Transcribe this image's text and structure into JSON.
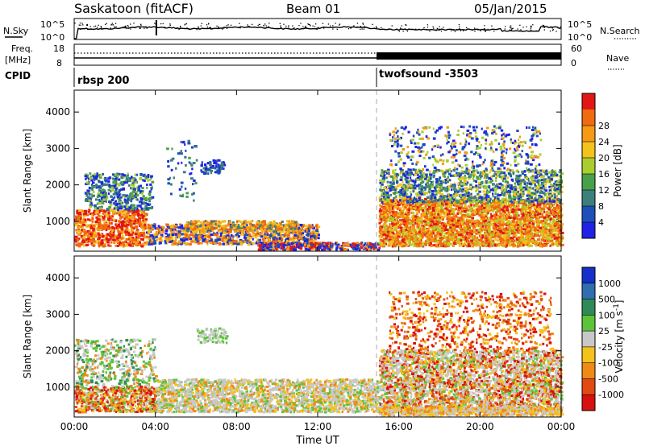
{
  "header": {
    "title": "Saskatoon (fitACF)",
    "beam": "Beam 01",
    "date": "05/Jan/2015"
  },
  "panel_labels": {
    "nsky": "N.Sky",
    "nsky_hi": "10^5",
    "nsky_lo": "10^0",
    "nsky_hi_right": "10^5",
    "nsky_lo_right": "10^0",
    "nsearch": "N.Search",
    "freq_line1": "Freq.",
    "freq_line2": "[MHz]",
    "freq_hi": "18",
    "freq_lo": "8",
    "nave_hi": "60",
    "nave_lo": "0",
    "nave": "Nave",
    "cpid": "CPID",
    "cpid_left": "rbsp 200",
    "cpid_right": "twofsound -3503"
  },
  "chart_data": [
    {
      "type": "heatmap",
      "name": "power",
      "ylabel": "Slant Range [km]",
      "xlabel": "",
      "xlim_hours": [
        0,
        24
      ],
      "ylim_km": [
        180,
        4600
      ],
      "y_ticks": [
        1000,
        2000,
        3000,
        4000
      ],
      "colorbar_label": "Power [dB]",
      "colorbar_ticks": [
        "4",
        "8",
        "12",
        "16",
        "20",
        "24",
        "28"
      ],
      "colors": [
        "#1f22e6",
        "#1e4fb8",
        "#3d7f7a",
        "#49a04a",
        "#aacd2e",
        "#f3c21b",
        "#f59a12",
        "#ef6a10",
        "#e21616"
      ]
    },
    {
      "type": "heatmap",
      "name": "velocity",
      "ylabel": "Slant Range [km]",
      "xlabel": "Time UT",
      "xlim_hours": [
        0,
        24
      ],
      "ylim_km": [
        180,
        4600
      ],
      "y_ticks": [
        1000,
        2000,
        3000,
        4000
      ],
      "x_ticks": [
        "00:00",
        "04:00",
        "08:00",
        "12:00",
        "16:00",
        "20:00",
        "00:00"
      ],
      "colorbar_label": "Velocity [m s-1]",
      "colorbar_ticks": [
        "1000",
        "500",
        "100",
        "25",
        "-25",
        "-100",
        "-500",
        "-1000"
      ],
      "colors": [
        "#1530c8",
        "#2f6fb0",
        "#2e8b57",
        "#5cc43a",
        "#c8c8c8",
        "#f3c21b",
        "#f08a16",
        "#e24a12",
        "#d91010"
      ]
    }
  ]
}
